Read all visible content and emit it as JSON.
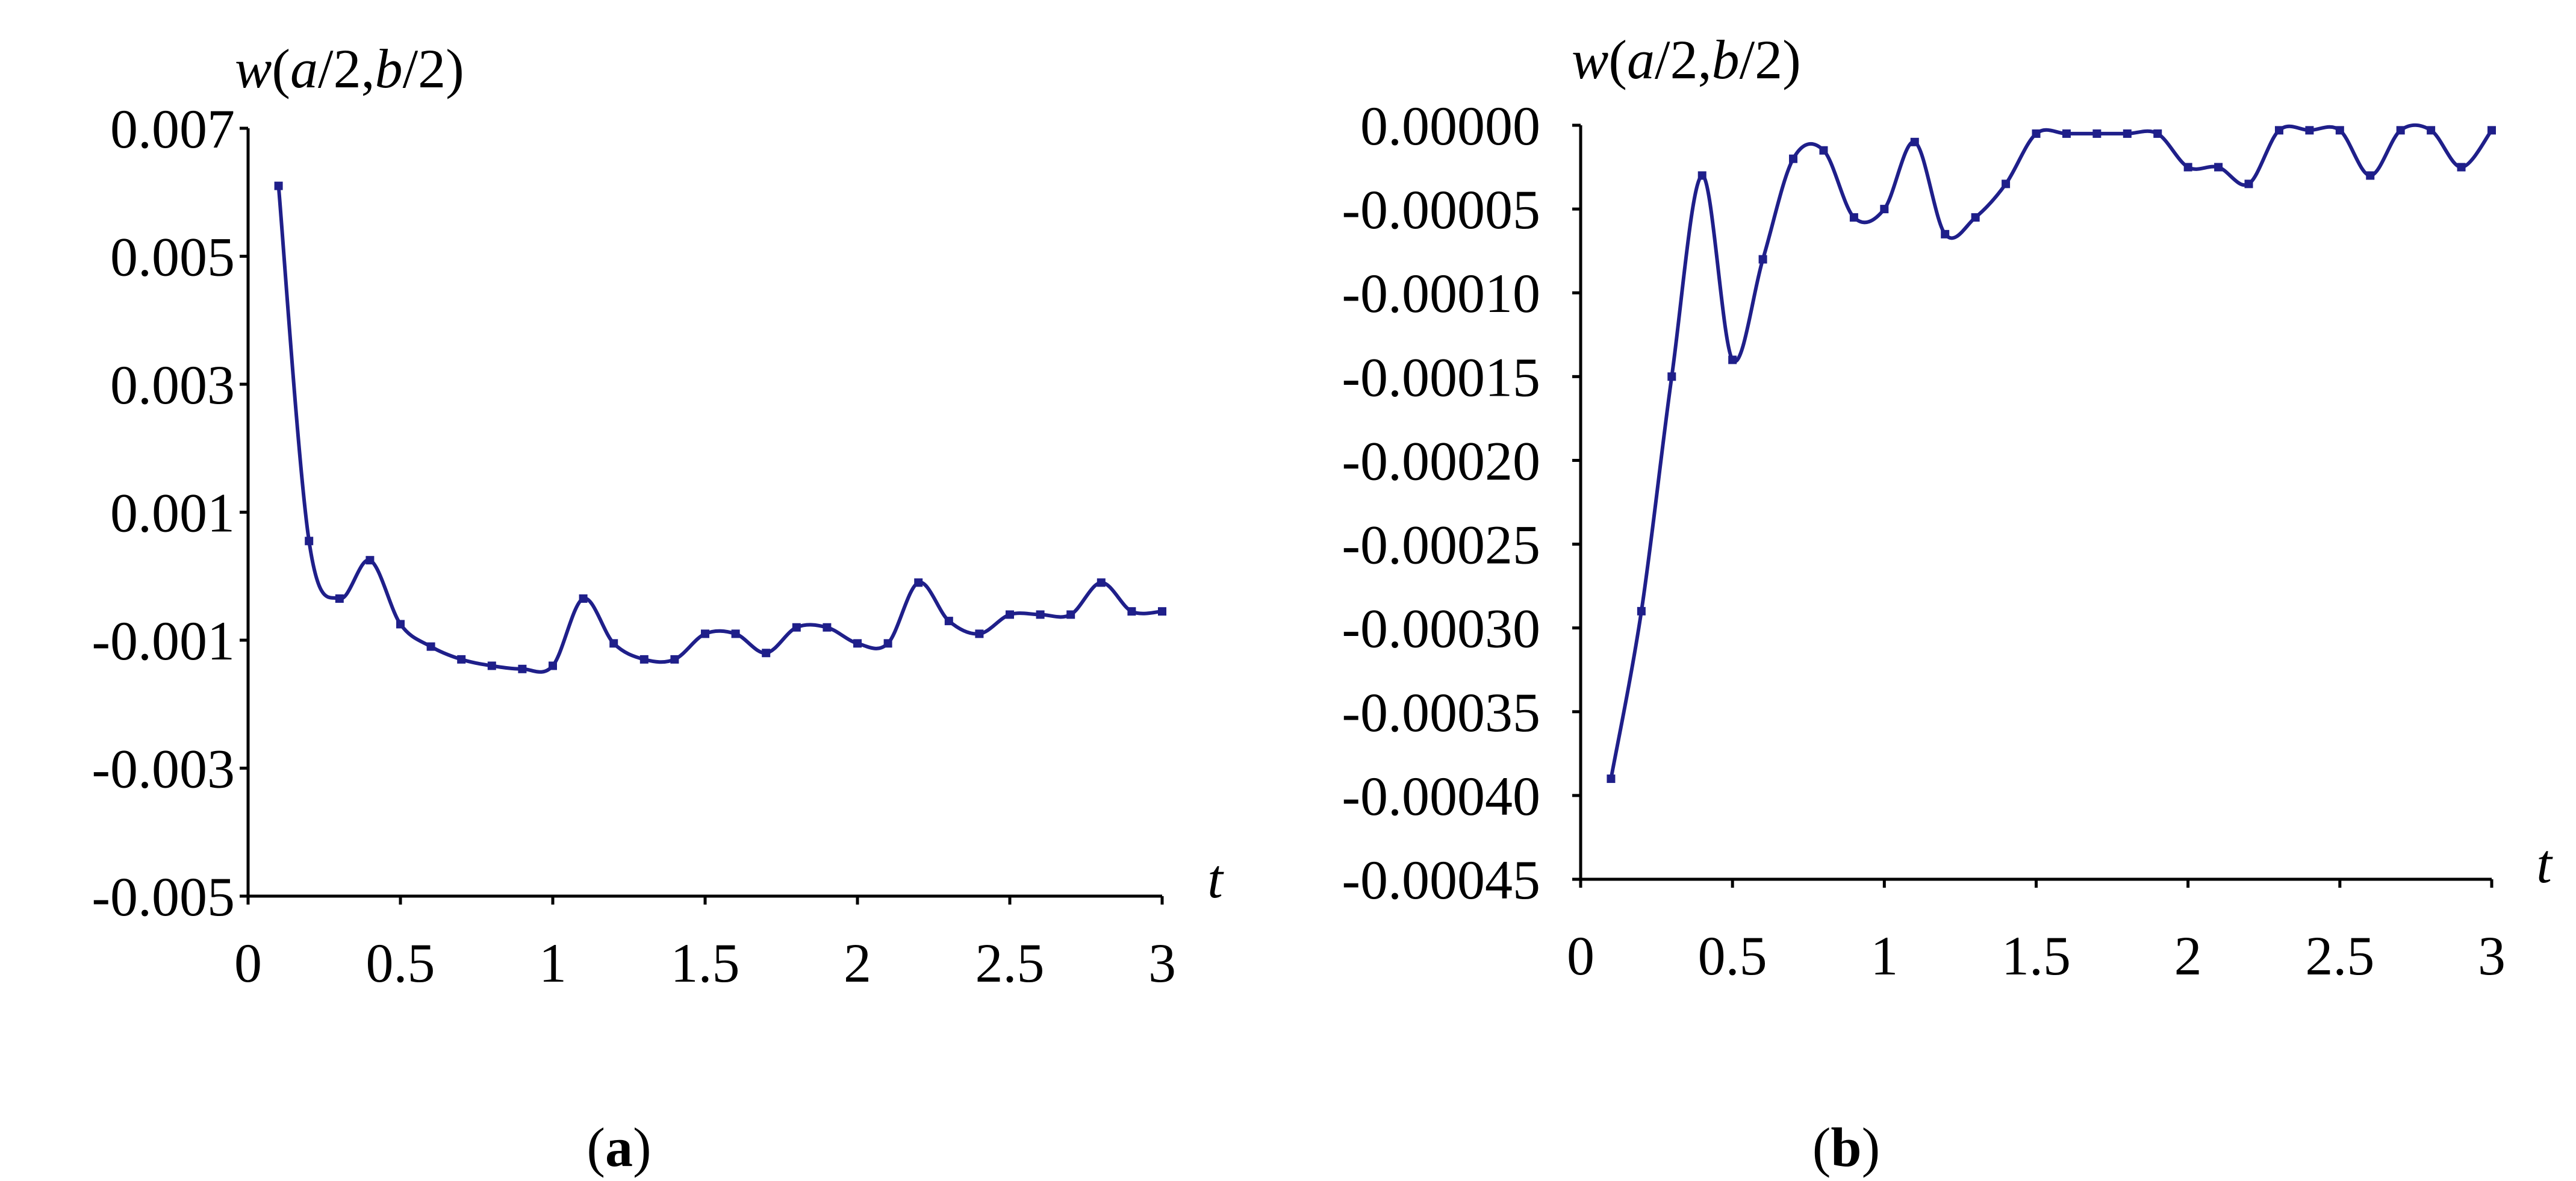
{
  "chart_data": [
    {
      "panel": "a",
      "type": "line",
      "ylabel": "w(a/2,b/2)",
      "xlabel": "t",
      "xlim": [
        0,
        3
      ],
      "ylim": [
        -0.005,
        0.007
      ],
      "x_ticks": [
        0,
        0.5,
        1,
        1.5,
        2,
        2.5,
        3
      ],
      "x_tick_labels": [
        "0",
        "0.5",
        "1",
        "1.5",
        "2",
        "2.5",
        "3"
      ],
      "y_ticks": [
        0.007,
        0.005,
        0.003,
        0.001,
        -0.001,
        -0.003,
        -0.005
      ],
      "y_tick_labels": [
        "0.007",
        "0.005",
        "0.003",
        "0.001",
        "-0.001",
        "-0.003",
        "-0.005"
      ],
      "grid": false,
      "series": [
        {
          "color": "#1f1f8a",
          "x": [
            0.1,
            0.2,
            0.3,
            0.4,
            0.5,
            0.6,
            0.7,
            0.8,
            0.9,
            1.0,
            1.1,
            1.2,
            1.3,
            1.4,
            1.5,
            1.6,
            1.7,
            1.8,
            1.9,
            2.0,
            2.1,
            2.2,
            2.3,
            2.4,
            2.5,
            2.6,
            2.7,
            2.8,
            2.9,
            3.0
          ],
          "y": [
            0.0061,
            0.00055,
            -0.00035,
            0.00025,
            -0.00075,
            -0.0011,
            -0.0013,
            -0.0014,
            -0.00145,
            -0.0014,
            -0.00035,
            -0.00105,
            -0.0013,
            -0.0013,
            -0.0009,
            -0.0009,
            -0.0012,
            -0.0008,
            -0.0008,
            -0.00105,
            -0.00105,
            -0.0001,
            -0.0007,
            -0.0009,
            -0.0006,
            -0.0006,
            -0.0006,
            -0.0001,
            -0.00055,
            -0.00055
          ]
        }
      ]
    },
    {
      "panel": "b",
      "type": "line",
      "ylabel": "w(a/2,b/2)",
      "xlabel": "t",
      "xlim": [
        0,
        3
      ],
      "ylim": [
        -0.00045,
        0
      ],
      "x_ticks": [
        0,
        0.5,
        1,
        1.5,
        2,
        2.5,
        3
      ],
      "x_tick_labels": [
        "0",
        "0.5",
        "1",
        "1.5",
        "2",
        "2.5",
        "3"
      ],
      "y_ticks": [
        0,
        -5e-05,
        -0.0001,
        -0.00015,
        -0.0002,
        -0.00025,
        -0.0003,
        -0.00035,
        -0.0004,
        -0.00045
      ],
      "y_tick_labels": [
        "0.00000",
        "-0.00005",
        "-0.00010",
        "-0.00015",
        "-0.00020",
        "-0.00025",
        "-0.00030",
        "-0.00035",
        "-0.00040",
        "-0.00045"
      ],
      "grid": false,
      "series": [
        {
          "color": "#1f1f8a",
          "x": [
            0.1,
            0.2,
            0.3,
            0.4,
            0.5,
            0.6,
            0.7,
            0.8,
            0.9,
            1.0,
            1.1,
            1.2,
            1.3,
            1.4,
            1.5,
            1.6,
            1.7,
            1.8,
            1.9,
            2.0,
            2.1,
            2.2,
            2.3,
            2.4,
            2.5,
            2.6,
            2.7,
            2.8,
            2.9,
            3.0
          ],
          "y": [
            -0.00039,
            -0.00029,
            -0.00015,
            -3e-05,
            -0.00014,
            -8e-05,
            -2e-05,
            -1.5e-05,
            -5.5e-05,
            -5e-05,
            -1e-05,
            -6.5e-05,
            -5.5e-05,
            -3.5e-05,
            -5e-06,
            -5e-06,
            -5e-06,
            -5e-06,
            -5e-06,
            -2.5e-05,
            -2.5e-05,
            -3.5e-05,
            -3e-06,
            -3e-06,
            -3e-06,
            -3e-05,
            -3e-06,
            -3e-06,
            -2.5e-05,
            -3e-06
          ]
        }
      ]
    }
  ],
  "panel_labels": {
    "a": {
      "open": "(",
      "letter": "a",
      "close": ")"
    },
    "b": {
      "open": "(",
      "letter": "b",
      "close": ")"
    }
  }
}
